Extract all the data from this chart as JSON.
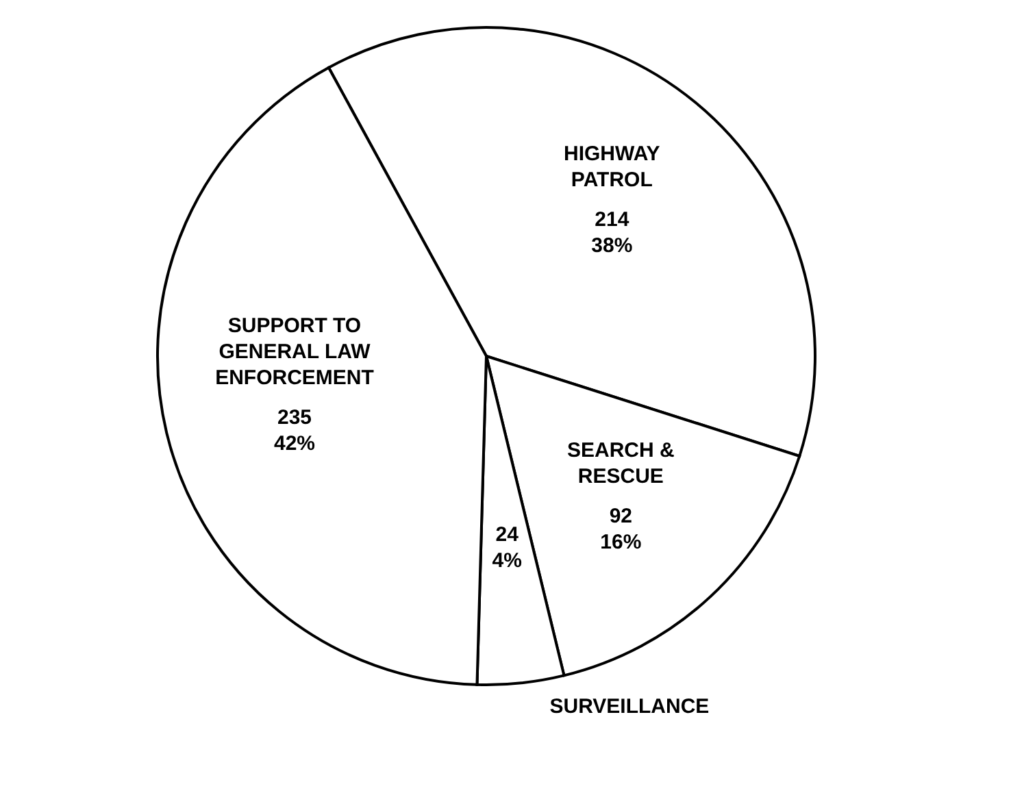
{
  "chart_data": {
    "type": "pie",
    "categories": [
      "HIGHWAY PATROL",
      "SEARCH & RESCUE",
      "SURVEILLANCE",
      "SUPPORT TO GENERAL LAW ENFORCEMENT"
    ],
    "values": [
      214,
      92,
      24,
      235
    ],
    "colors": [
      "#ffffff",
      "#ffffff",
      "#ffffff",
      "#ffffff"
    ],
    "value_labels": [
      "214\n38%",
      "92\n16%",
      "24\n4%",
      "235\n42%"
    ]
  }
}
